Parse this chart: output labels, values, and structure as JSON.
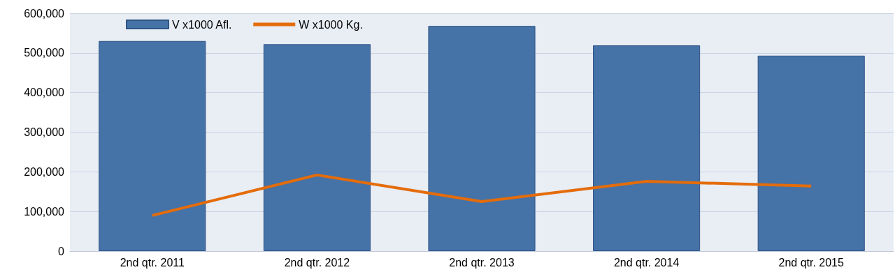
{
  "chart_data": {
    "type": "bar",
    "categories": [
      "2nd qtr. 2011",
      "2nd qtr. 2012",
      "2nd qtr. 2013",
      "2nd qtr. 2014",
      "2nd qtr. 2015"
    ],
    "series": [
      {
        "name": "V x1000 Afl.",
        "color": "#4572a7",
        "values": [
          530000,
          522000,
          568000,
          519000,
          493000
        ]
      },
      {
        "name": "W x1000 Kg.",
        "type": "line",
        "color": "#e46c0a",
        "values": [
          90000,
          192000,
          125000,
          176000,
          164000
        ]
      }
    ],
    "ylim": [
      0,
      600000
    ],
    "yticks": [
      0,
      {
        "value": 100000,
        "label": "100,000"
      },
      {
        "value": 200000,
        "label": "200,000"
      },
      {
        "value": 300000,
        "label": "300,000"
      },
      {
        "value": 400000,
        "label": "400,000"
      },
      {
        "value": 500000,
        "label": "500,000"
      },
      {
        "value": 600000,
        "label": "600,000"
      }
    ],
    "grid": "y",
    "legend": "top left",
    "marker": "none"
  }
}
